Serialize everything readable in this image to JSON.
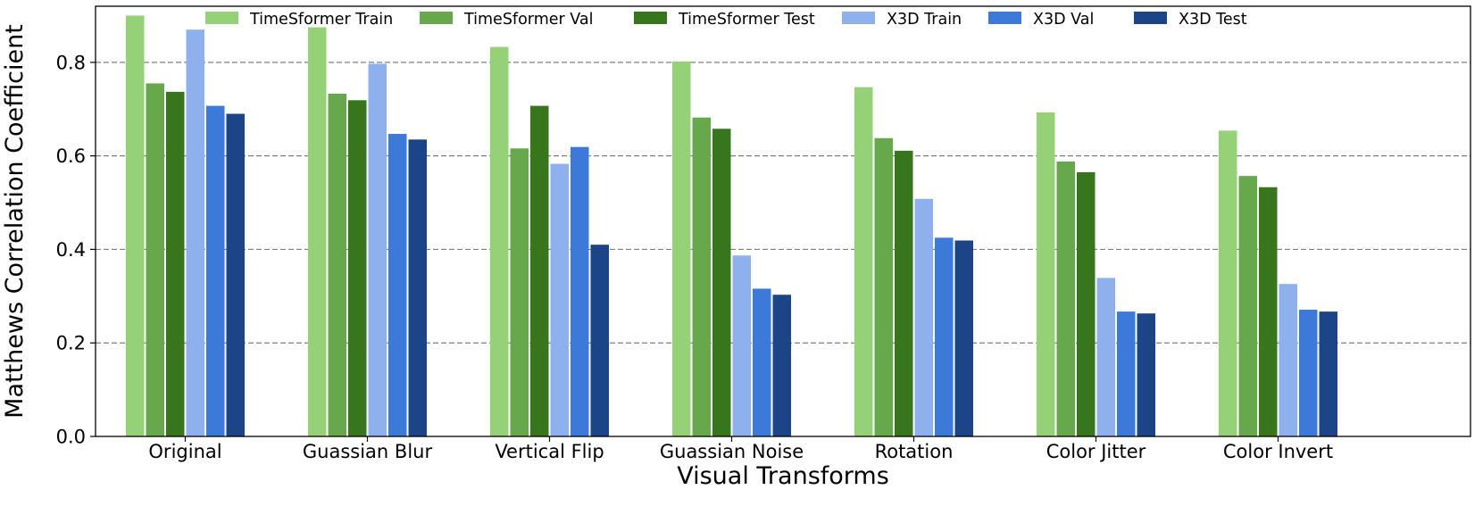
{
  "chart_data": {
    "type": "bar",
    "title": "",
    "xlabel": "Visual Transforms",
    "ylabel": "Matthews Correlation Coefficient",
    "ylim": [
      0,
      0.92
    ],
    "yticks": [
      0.0,
      0.2,
      0.4,
      0.6,
      0.8
    ],
    "ytick_labels": [
      "0.0",
      "0.2",
      "0.4",
      "0.6",
      "0.8"
    ],
    "grid": "horizontal-dashed",
    "legend_position": "top",
    "categories": [
      "Original",
      "Guassian Blur",
      "Vertical Flip",
      "Guassian Noise",
      "Rotation",
      "Color Jitter",
      "Color Invert"
    ],
    "series": [
      {
        "name": "TimeSformer Train",
        "color": "#95d277",
        "values": [
          0.9,
          0.875,
          0.833,
          0.802,
          0.747,
          0.693,
          0.654
        ]
      },
      {
        "name": "TimeSformer Val",
        "color": "#68a84d",
        "values": [
          0.755,
          0.733,
          0.616,
          0.682,
          0.638,
          0.588,
          0.557
        ]
      },
      {
        "name": "TimeSformer Test",
        "color": "#38761d",
        "values": [
          0.737,
          0.719,
          0.707,
          0.658,
          0.611,
          0.565,
          0.533
        ]
      },
      {
        "name": "X3D Train",
        "color": "#8eb0ec",
        "values": [
          0.87,
          0.797,
          0.583,
          0.387,
          0.508,
          0.339,
          0.326
        ]
      },
      {
        "name": "X3D Val",
        "color": "#3c79d9",
        "values": [
          0.707,
          0.647,
          0.619,
          0.316,
          0.425,
          0.267,
          0.271
        ]
      },
      {
        "name": "X3D Test",
        "color": "#1c4587",
        "values": [
          0.69,
          0.635,
          0.41,
          0.303,
          0.419,
          0.263,
          0.267
        ]
      }
    ]
  }
}
